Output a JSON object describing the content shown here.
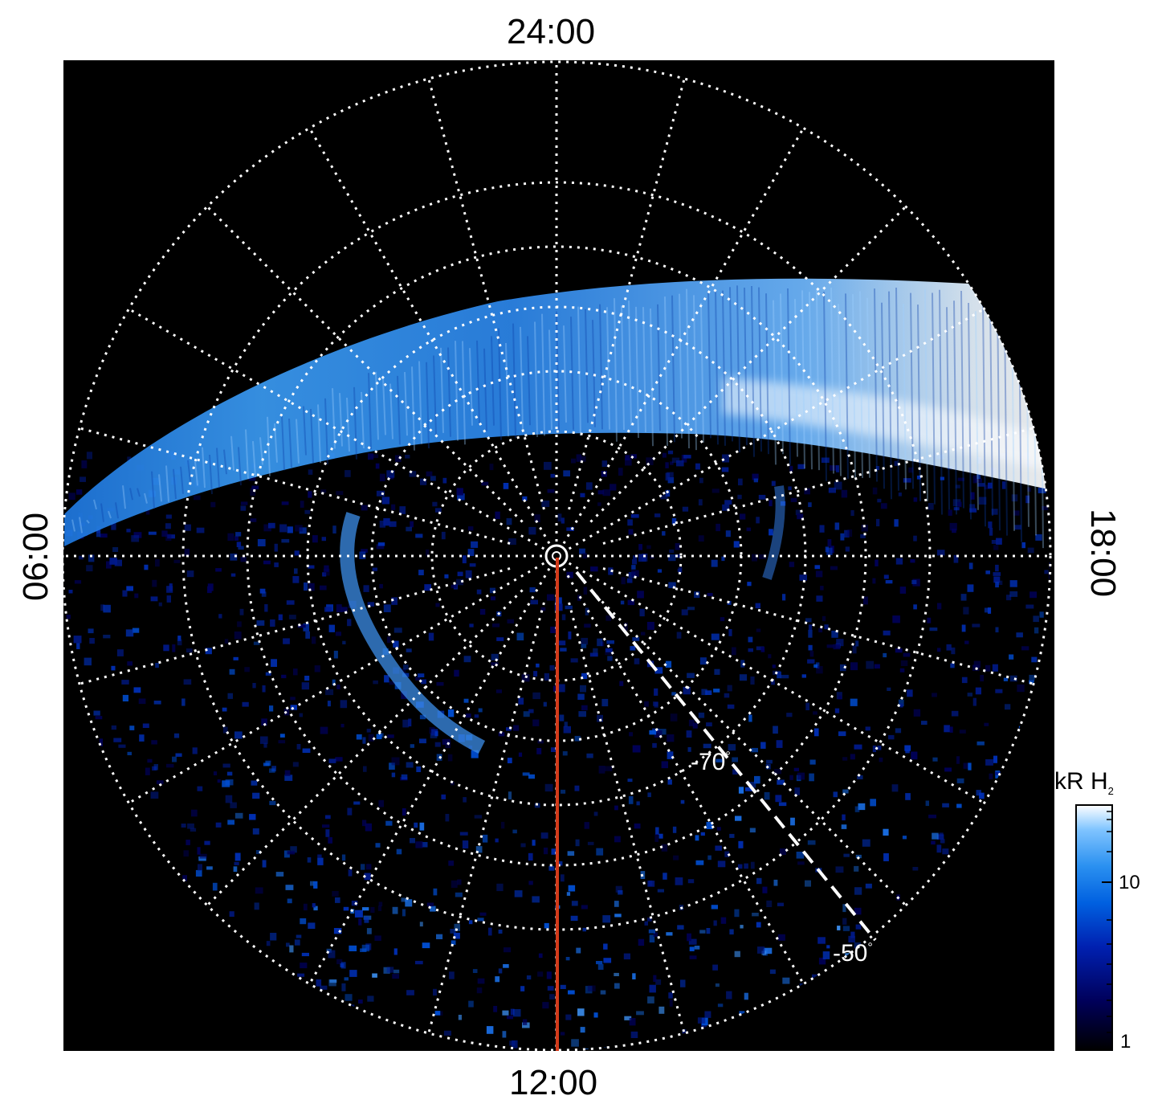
{
  "image": {
    "subject": "polar-projected auroral emission map",
    "background_color": "#000000",
    "grid_color": "#ffffff",
    "meridian_line_color": "#d33a1a"
  },
  "local_time_labels": {
    "top": "24:00",
    "bottom": "12:00",
    "left": "06:00",
    "right": "18:00"
  },
  "latitude_labels": {
    "inner": "-70",
    "outer": "-50",
    "degree_symbol": "°"
  },
  "colorbar": {
    "title_main": "kR H",
    "title_subscript": "2",
    "ticks": [
      "10",
      "1"
    ],
    "colors": [
      "#000000",
      "#00005a",
      "#0020b0",
      "#0060e0",
      "#2a90f0",
      "#80c4ff",
      "#ffffff"
    ]
  }
}
